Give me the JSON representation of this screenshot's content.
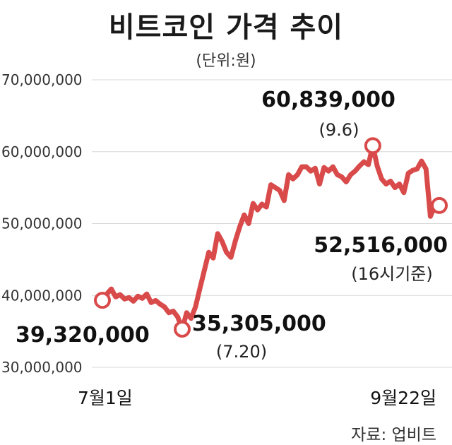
{
  "title": "비트코인 가격 추이",
  "unit": "(단위:원)",
  "source": "자료: 업비트",
  "colors": {
    "line": "#d94a4a",
    "grid": "#d8d8d8",
    "marker_fill": "#ffffff"
  },
  "chart_data": {
    "type": "line",
    "title": "비트코인 가격 추이",
    "ylabel": "",
    "xlabel": "",
    "ylim": [
      30000000,
      70000000
    ],
    "grid": true,
    "y_ticks": [
      70000000,
      60000000,
      50000000,
      40000000,
      30000000
    ],
    "y_tick_labels": [
      "70,000,000",
      "60,000,000",
      "50,000,000",
      "40,000,000",
      "30,000,000"
    ],
    "x_labels": [
      "7월1일",
      "9월22일"
    ],
    "series": [
      {
        "values": [
          39320000,
          40200000,
          40900000,
          39800000,
          40100000,
          39500000,
          39700000,
          39200000,
          39900000,
          39600000,
          40200000,
          39000000,
          39300000,
          38800000,
          38400000,
          37600000,
          37800000,
          37000000,
          35305000,
          37600000,
          36800000,
          38400000,
          41000000,
          43500000,
          46000000,
          45200000,
          48600000,
          47500000,
          46000000,
          45300000,
          47600000,
          49600000,
          51200000,
          50000000,
          52800000,
          51900000,
          52700000,
          52300000,
          55400000,
          55000000,
          54600000,
          53200000,
          56800000,
          56200000,
          56800000,
          57900000,
          57900000,
          57300000,
          57700000,
          55500000,
          57800000,
          57300000,
          57900000,
          56800000,
          56500000,
          55800000,
          56800000,
          57300000,
          58000000,
          58600000,
          58200000,
          60839000,
          58000000,
          56200000,
          55500000,
          55900000,
          55000000,
          55500000,
          54300000,
          57000000,
          57400000,
          57600000,
          58700000,
          57600000,
          51000000,
          52500000,
          52516000
        ]
      }
    ],
    "annotations": [
      {
        "label": "39,320,000",
        "sub": "",
        "index": 0
      },
      {
        "label": "35,305,000",
        "sub": "(7.20)",
        "index": 18
      },
      {
        "label": "60,839,000",
        "sub": "(9.6)",
        "index": 61
      },
      {
        "label": "52,516,000",
        "sub": "(16시기준)",
        "index": 76
      }
    ]
  }
}
